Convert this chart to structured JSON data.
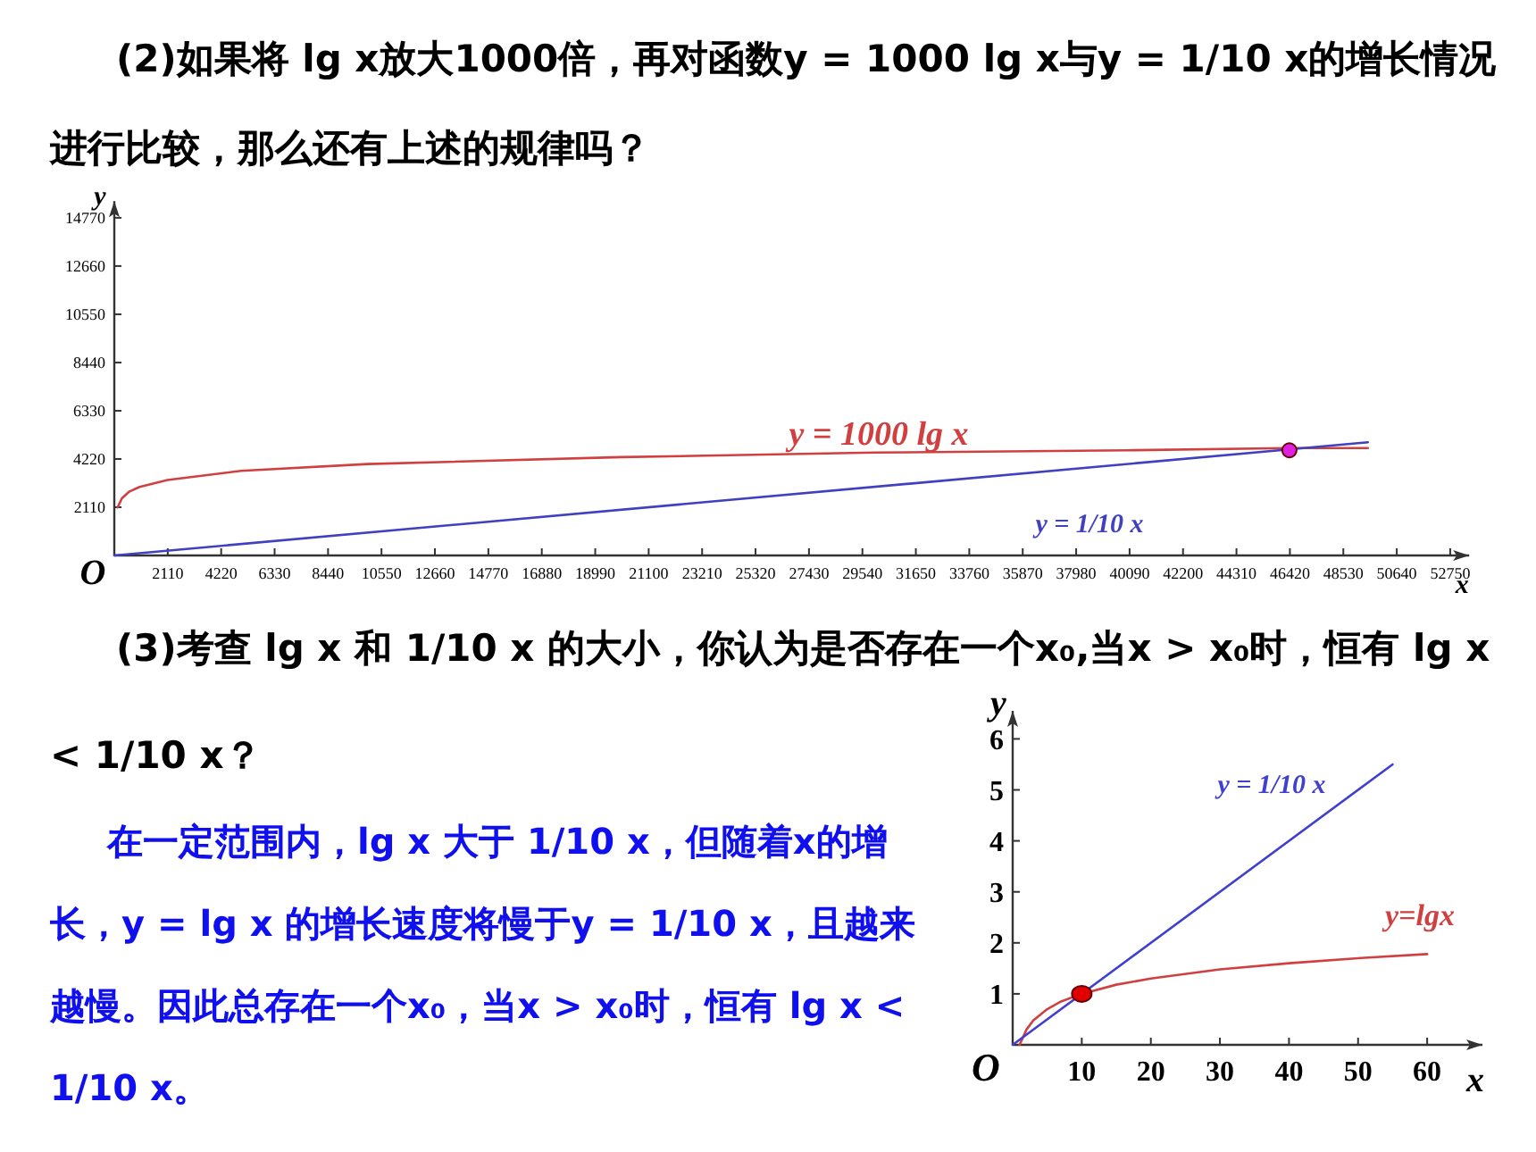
{
  "chart_data": [
    {
      "type": "line",
      "title": "(2)如果将 lg x放大1000倍，再对函数y = 1000 lg x与y = 1/10 x的增长情况进行比较，那么还有上述的规律吗？",
      "xlabel": "x",
      "ylabel": "y",
      "xlim": [
        0,
        53500
      ],
      "ylim": [
        0,
        15500
      ],
      "xticks": [
        2110,
        4220,
        6330,
        8440,
        10550,
        12660,
        14770,
        16880,
        18990,
        21100,
        23210,
        25320,
        27430,
        29540,
        31650,
        33760,
        35870,
        37980,
        40090,
        42200,
        44310,
        46420,
        48530,
        50640,
        52750
      ],
      "yticks": [
        2110,
        4220,
        6330,
        8440,
        10550,
        12660,
        14770
      ],
      "series": [
        {
          "color": "#d04040",
          "x": [
            130,
            300,
            600,
            1000,
            2100,
            5000,
            10000,
            20000,
            30000,
            40000,
            46400,
            49500
          ],
          "values": [
            2100,
            2500,
            2800,
            3000,
            3300,
            3700,
            4000,
            4300,
            4500,
            4600,
            4700,
            4700
          ]
        },
        {
          "color": "#4040c0",
          "x": [
            0,
            49500
          ],
          "values": [
            0,
            4950
          ]
        },
        {
          "type": "scatter",
          "marker": "circle",
          "color": "#e020e0",
          "x": [
            46400
          ],
          "values": [
            4600
          ]
        }
      ],
      "annotations": [
        "y = 1000 lg x",
        "y = 1/10 x",
        "O"
      ]
    },
    {
      "type": "line",
      "title": "(3)考查 lg x 和 1/10 x 的大小，你认为是否存在一个x₀,当x > x₀时，恒有 lg x < 1/10 x？",
      "xlabel": "x",
      "ylabel": "y",
      "xlim": [
        0,
        68
      ],
      "ylim": [
        0,
        6.55
      ],
      "xticks": [
        10,
        20,
        30,
        40,
        50,
        60
      ],
      "yticks": [
        1,
        2,
        3,
        4,
        5,
        6
      ],
      "series": [
        {
          "color": "#d04040",
          "x": [
            1,
            2,
            3,
            5,
            7,
            10,
            15,
            20,
            30,
            40,
            50,
            60
          ],
          "values": [
            0,
            0.3,
            0.48,
            0.7,
            0.85,
            1,
            1.18,
            1.3,
            1.48,
            1.6,
            1.7,
            1.78
          ]
        },
        {
          "color": "#4040d0",
          "x": [
            0,
            55
          ],
          "values": [
            0,
            5.5
          ]
        },
        {
          "type": "scatter",
          "marker": "circle",
          "color": "#e00000",
          "x": [
            10
          ],
          "values": [
            1
          ]
        }
      ],
      "annotations": [
        "y=lgx",
        "y = 1/10 x",
        "O",
        "在一定范围内，lg x 大于 1/10 x，但随着x的增长，y = lg x 的增长速度将慢于y = 1/10 x，且越来越慢。因此总存在一个x₀，当x > x₀时，恒有 lg x < 1/10 x。"
      ]
    }
  ]
}
